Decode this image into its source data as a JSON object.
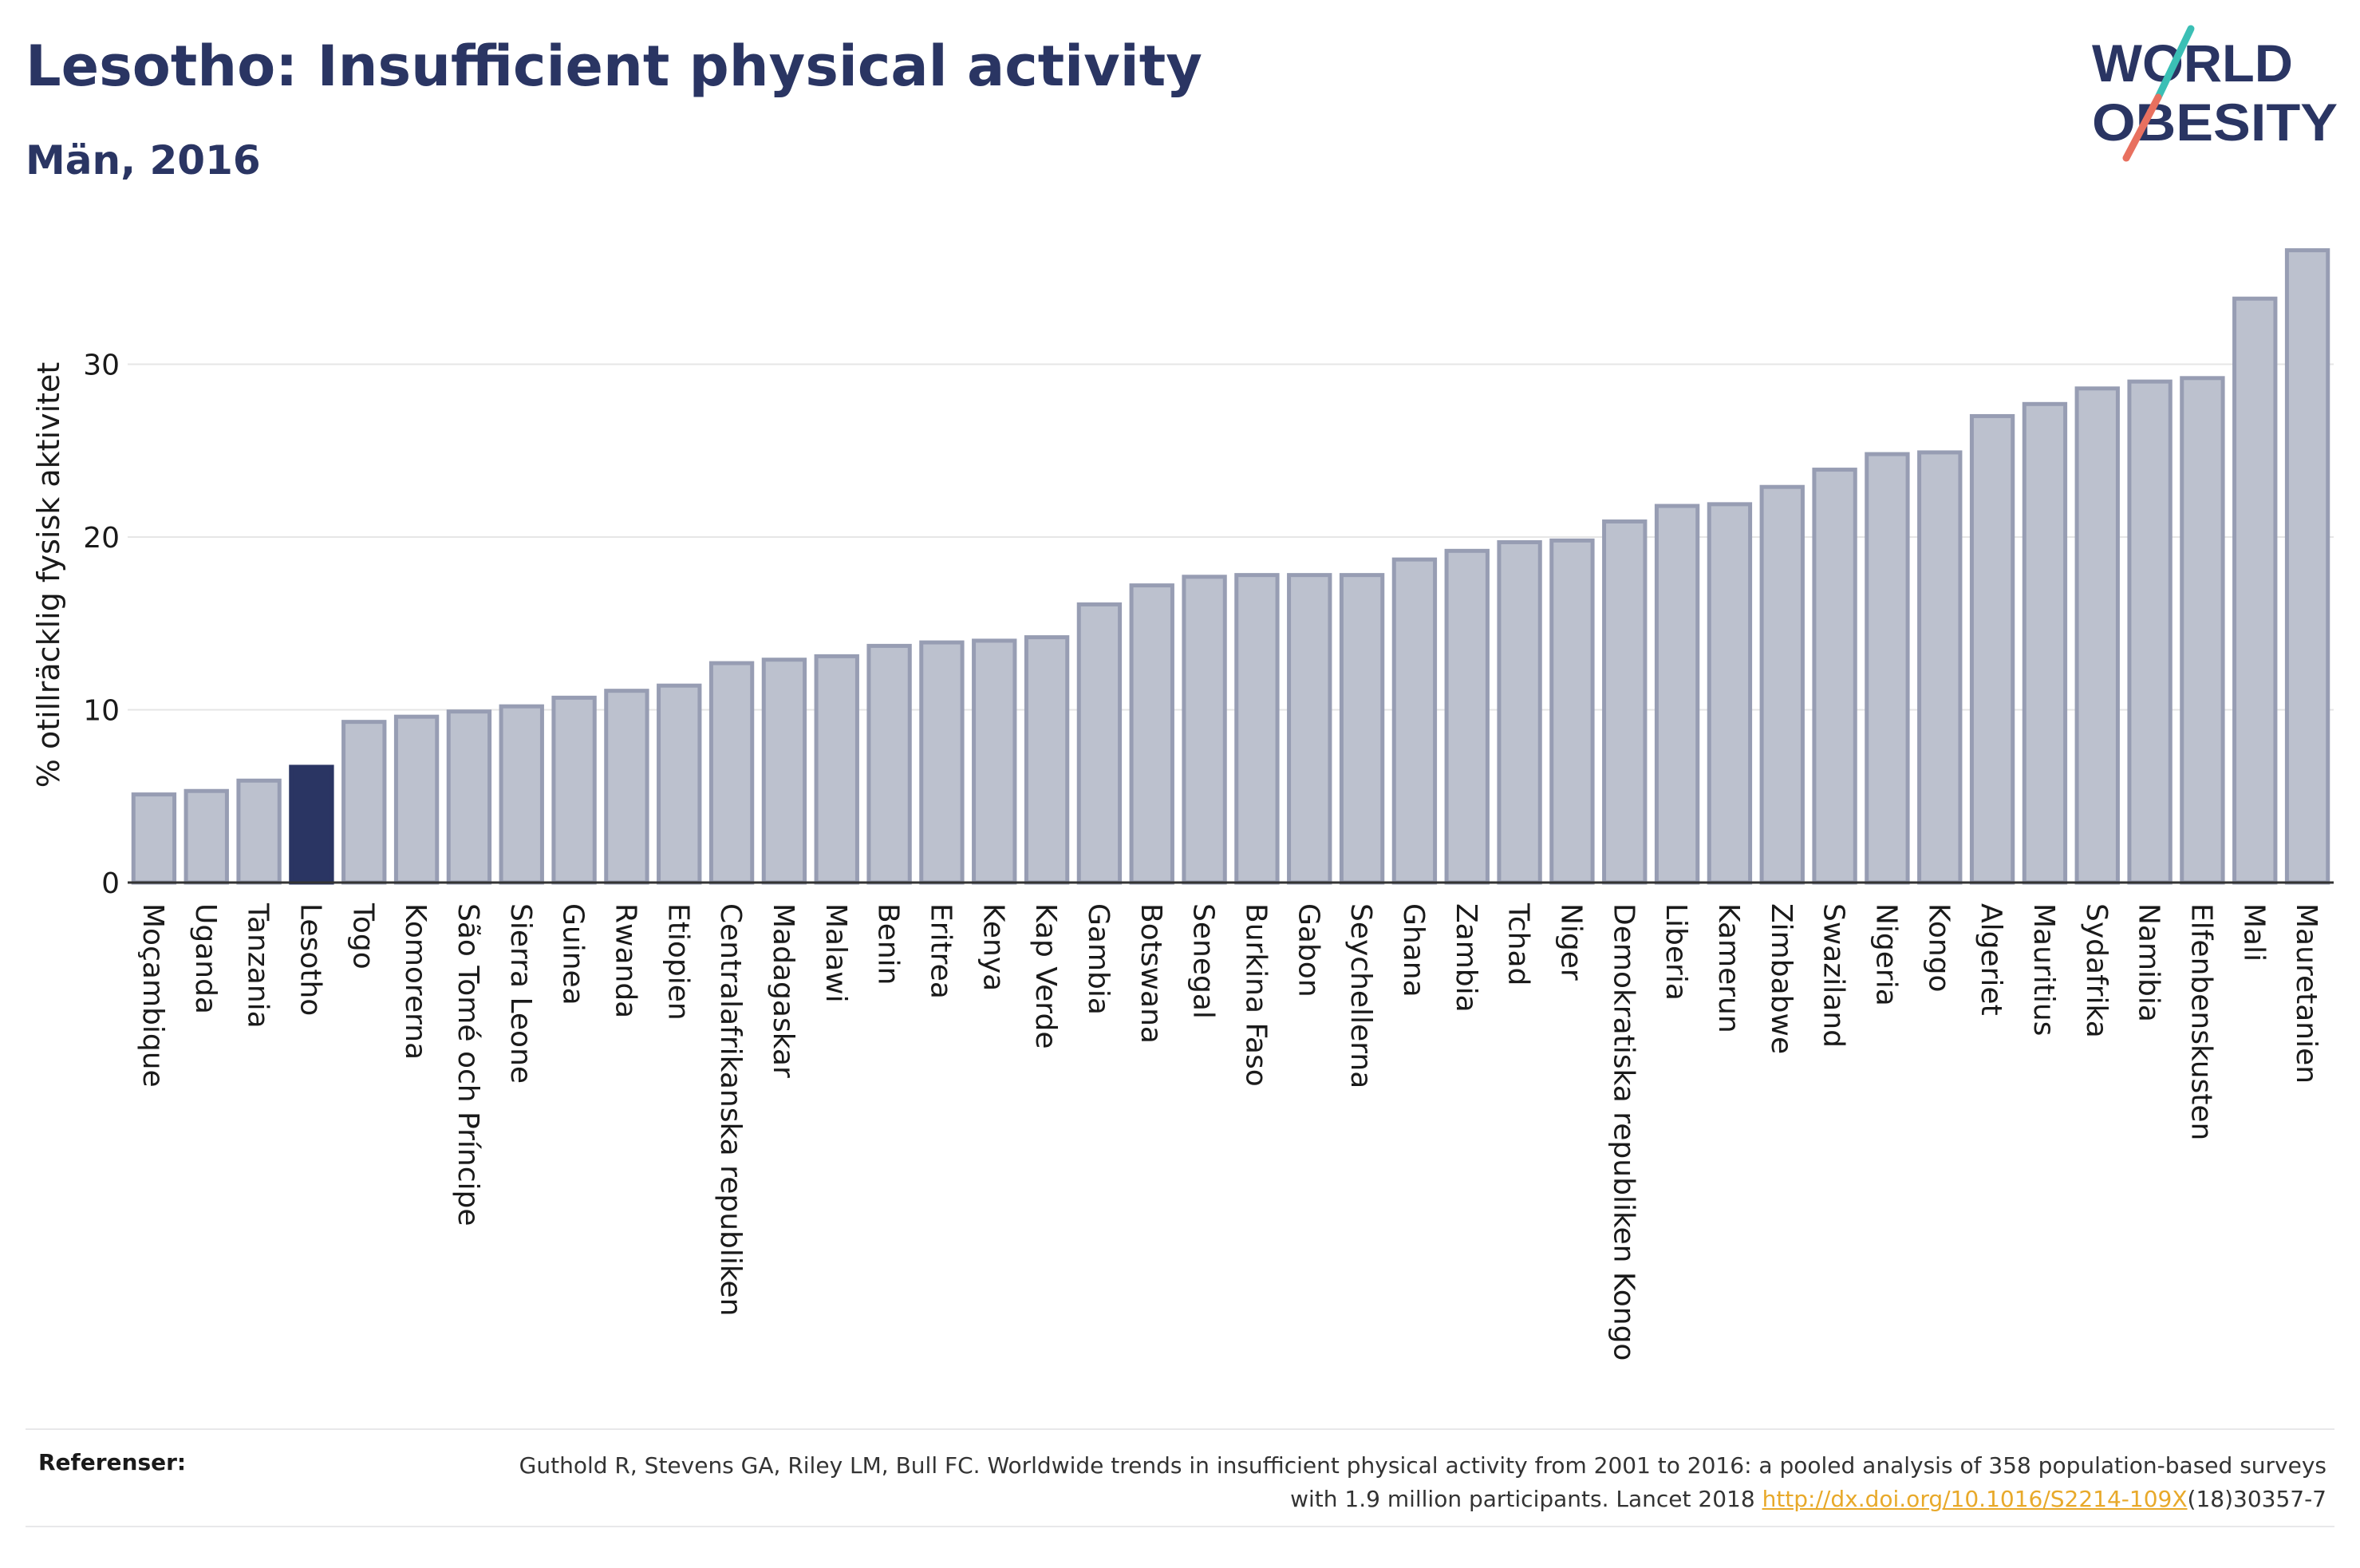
{
  "header": {
    "title": "Lesotho: Insufficient physical activity",
    "subtitle": "Män, 2016"
  },
  "logo": {
    "line1": "WORLD",
    "line2": "OBESITY",
    "colors": {
      "text": "#2a3563",
      "slash_top": "#3bbfb5",
      "slash_bottom": "#e8705f"
    }
  },
  "references": {
    "label": "Referenser:",
    "text_before": "Guthold R, Stevens GA, Riley LM, Bull FC. Worldwide trends in insufficient physical activity from 2001 to 2016: a pooled analysis of 358 population-based surveys with 1.9 million participants. Lancet 2018 ",
    "link": "http://dx.doi.org/10.1016/S2214-109X",
    "text_after": "(18)30357-7"
  },
  "colors": {
    "bar": "#bcc1ce",
    "bar_border": "#979db3",
    "highlight": "#2a3563",
    "grid": "#e6e6e6",
    "axis": "#333333",
    "text": "#1a1a1a"
  },
  "chart_data": {
    "type": "bar",
    "title": "Lesotho: Insufficient physical activity",
    "subtitle": "Män, 2016",
    "xlabel": "",
    "ylabel": "% otillräcklig fysisk aktivitet",
    "ylim": [
      0,
      37
    ],
    "yticks": [
      0,
      10,
      20,
      30
    ],
    "grid": true,
    "highlight": "Lesotho",
    "categories": [
      "Moçambique",
      "Uganda",
      "Tanzania",
      "Lesotho",
      "Togo",
      "Komorerna",
      "São Tomé och Príncipe",
      "Sierra Leone",
      "Guinea",
      "Rwanda",
      "Etiopien",
      "Centralafrikanska republiken",
      "Madagaskar",
      "Malawi",
      "Benin",
      "Eritrea",
      "Kenya",
      "Kap Verde",
      "Gambia",
      "Botswana",
      "Senegal",
      "Burkina Faso",
      "Gabon",
      "Seychellerna",
      "Ghana",
      "Zambia",
      "Tchad",
      "Niger",
      "Demokratiska republiken Kongo",
      "Liberia",
      "Kamerun",
      "Zimbabwe",
      "Swaziland",
      "Nigeria",
      "Kongo",
      "Algeriet",
      "Mauritius",
      "Sydafrika",
      "Namibia",
      "Elfenbenskusten",
      "Mali",
      "Mauretanien"
    ],
    "values": [
      5.1,
      5.3,
      5.9,
      6.7,
      9.3,
      9.6,
      9.9,
      10.2,
      10.7,
      11.1,
      11.4,
      12.7,
      12.9,
      13.1,
      13.7,
      13.9,
      14.0,
      14.2,
      16.1,
      17.2,
      17.7,
      17.8,
      17.8,
      17.8,
      18.7,
      19.2,
      19.7,
      19.8,
      20.9,
      21.8,
      21.9,
      22.9,
      23.9,
      24.8,
      24.9,
      27.0,
      27.7,
      28.6,
      29.0,
      29.2,
      33.8,
      36.6
    ]
  }
}
